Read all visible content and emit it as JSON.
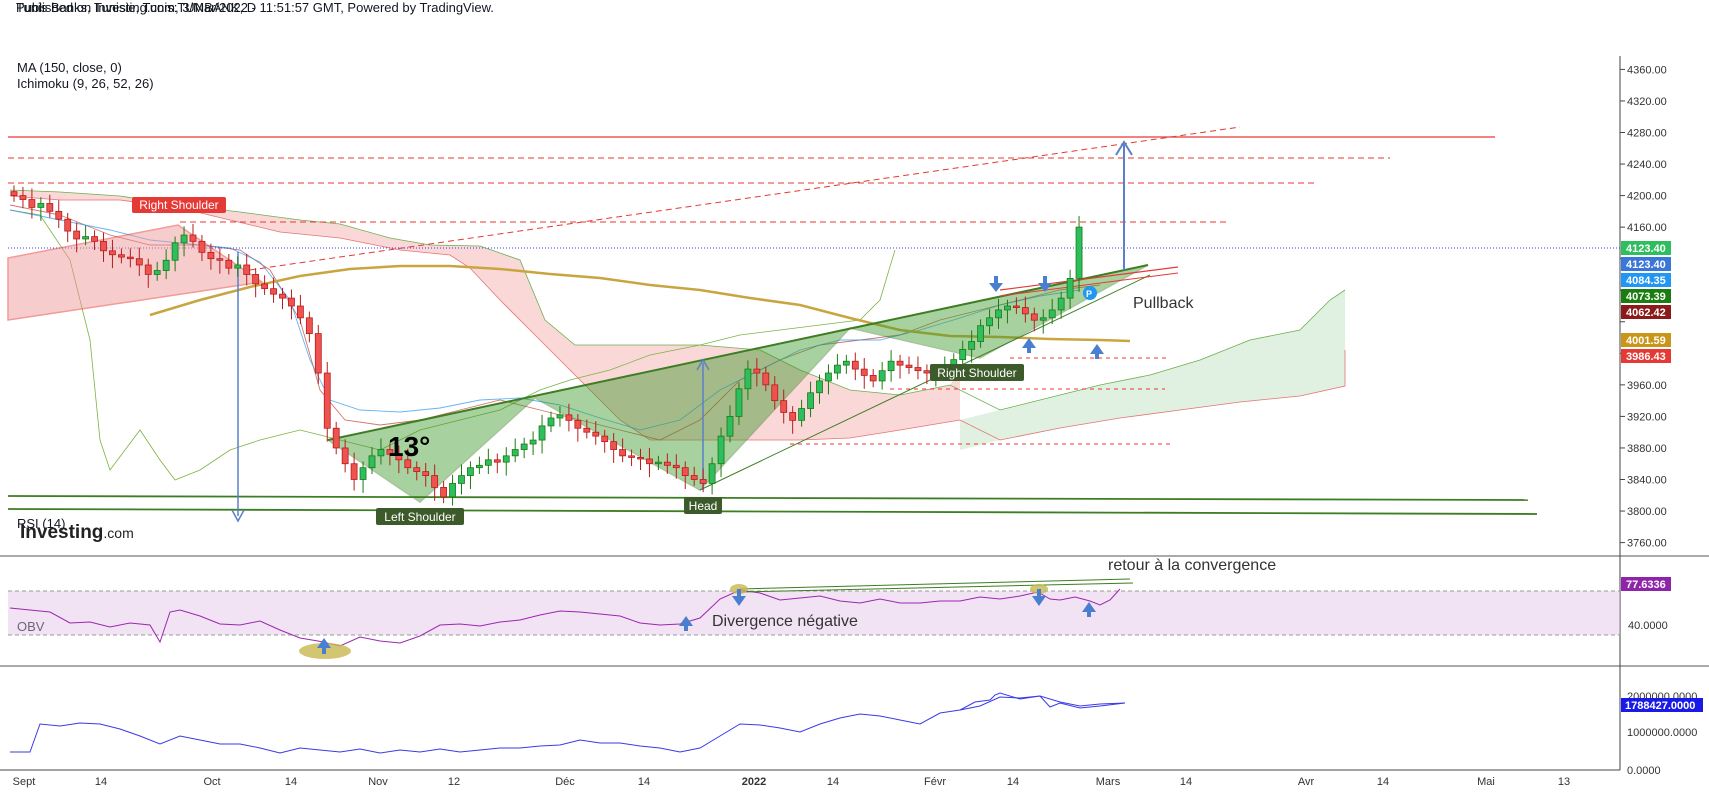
{
  "header": {
    "published": "Published on Investing.com, 3/Mar/2022 - 11:51:57 GMT, Powered by TradingView.",
    "symbol": "Tunis Banks, Tunisie, Tunis:TUNBANK, D"
  },
  "indicators": {
    "ma": "MA (150, close, 0)",
    "ichimoku": "Ichimoku (9, 26, 52, 26)",
    "rsi": "RSI (14)",
    "obv": "OBV"
  },
  "logo": {
    "text": "Investing",
    "suffix": ".com"
  },
  "colors": {
    "up": "#26a69a",
    "up_fill": "#2ebd5f",
    "down": "#ef5350",
    "ma": "#c9a540",
    "trend": "#e53935",
    "pattern": "#3d7d23",
    "rsi": "#9c27b0",
    "obv": "#3a3ae8",
    "arrow": "#4a7fcf"
  },
  "annotations": {
    "right_shoulder_top": "Right Shoulder",
    "left_shoulder": "Left Shoulder",
    "head": "Head",
    "right_shoulder": "Right Shoulder",
    "angle": "13°",
    "pullback": "Pullback",
    "divergence": "Divergence négative",
    "convergence": "retour à la convergence"
  },
  "price_labels": [
    {
      "value": "4123.40",
      "bg": "#2ebd5f"
    },
    {
      "value": "4123.40",
      "bg": "#3a76d8"
    },
    {
      "value": "4084.35",
      "bg": "#2196f3"
    },
    {
      "value": "4073.39",
      "bg": "#1b7c0f"
    },
    {
      "value": "4062.42",
      "bg": "#8b1a1a"
    },
    {
      "value": "4001.59",
      "bg": "#c9961a"
    },
    {
      "value": "3986.43",
      "bg": "#e53935"
    }
  ],
  "rsi_labels": [
    {
      "value": "77.6336",
      "bg": "#8e24aa"
    }
  ],
  "rsi_axis": [
    "40.0000"
  ],
  "obv_labels": [
    {
      "value": "1788427.0000",
      "bg": "#1a1ae6"
    }
  ],
  "obv_axis": [
    "2000000.0000",
    "1000000.0000",
    "0.0000"
  ],
  "chart_data": {
    "type": "candlestick",
    "title": "Tunis Banks, Tunisie, Tunis:TUNBANK, D",
    "y_ticks": [
      4360,
      4320,
      4280,
      4240,
      4200,
      4160,
      4120,
      4080,
      4040,
      4000,
      3960,
      3920,
      3880,
      3840,
      3800,
      3760
    ],
    "y_tick_labels": [
      "4360.00",
      "4320.00",
      "4280.00",
      "4240.00",
      "4200.00",
      "4160.00",
      "",
      "",
      "",
      "",
      "3960.00",
      "3920.00",
      "3880.00",
      "3840.00",
      "3800.00",
      "3760.00"
    ],
    "ylim": [
      3743,
      4377
    ],
    "x_labels": [
      "Sept",
      "14",
      "Oct",
      "14",
      "Nov",
      "12",
      "Déc",
      "14",
      "2022",
      "14",
      "Févr",
      "14",
      "Mars",
      "14",
      "Avr",
      "14",
      "Mai",
      "13"
    ],
    "close": [
      4200,
      4195,
      4185,
      4190,
      4180,
      4170,
      4155,
      4145,
      4148,
      4142,
      4130,
      4125,
      4122,
      4120,
      4112,
      4100,
      4105,
      4118,
      4140,
      4150,
      4142,
      4128,
      4120,
      4118,
      4108,
      4112,
      4100,
      4088,
      4082,
      4075,
      4070,
      4060,
      4045,
      4025,
      3975,
      3905,
      3880,
      3860,
      3840,
      3855,
      3870,
      3878,
      3872,
      3865,
      3855,
      3850,
      3845,
      3830,
      3818,
      3835,
      3845,
      3855,
      3858,
      3865,
      3862,
      3870,
      3878,
      3885,
      3890,
      3908,
      3918,
      3922,
      3915,
      3905,
      3900,
      3895,
      3888,
      3878,
      3870,
      3868,
      3866,
      3860,
      3862,
      3858,
      3855,
      3845,
      3840,
      3835,
      3860,
      3895,
      3920,
      3955,
      3980,
      3975,
      3960,
      3940,
      3925,
      3915,
      3930,
      3950,
      3965,
      3975,
      3985,
      3990,
      3980,
      3972,
      3965,
      3978,
      3990,
      3985,
      3982,
      3978,
      3975,
      3975,
      3982,
      3992,
      4005,
      4015,
      4035,
      4045,
      4055,
      4060,
      4058,
      4050,
      4042,
      4045,
      4055,
      4070,
      4095,
      4160
    ]
  }
}
